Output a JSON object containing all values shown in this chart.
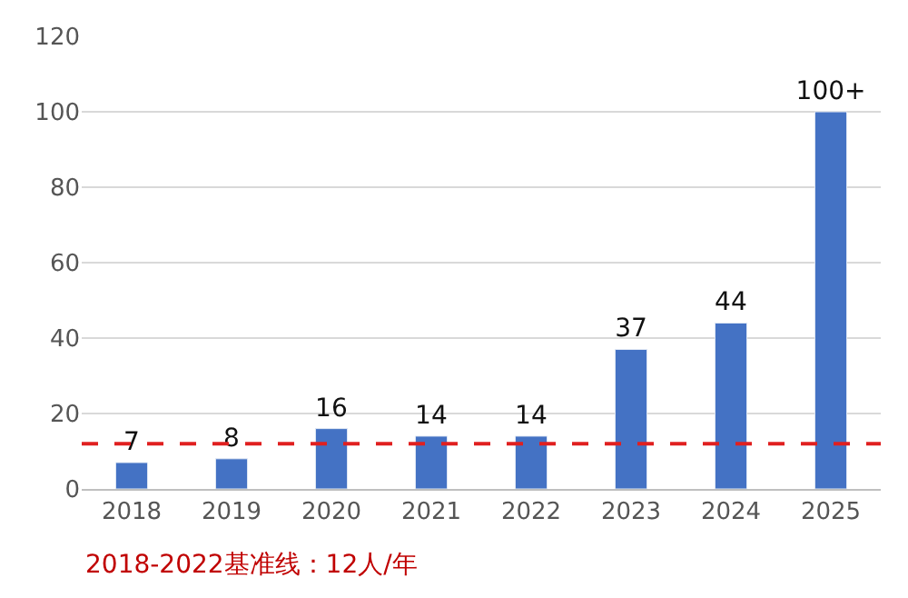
{
  "chart_data": {
    "type": "bar",
    "categories": [
      "2018",
      "2019",
      "2020",
      "2021",
      "2022",
      "2023",
      "2024",
      "2025"
    ],
    "values": [
      7,
      8,
      16,
      14,
      14,
      37,
      44,
      100
    ],
    "value_labels": [
      "7",
      "8",
      "16",
      "14",
      "14",
      "37",
      "44",
      "100+"
    ],
    "color": "#4472c4",
    "ylim": [
      0,
      120
    ],
    "yticks": [
      0,
      20,
      40,
      60,
      80,
      100,
      120
    ],
    "grid": "y",
    "ref_lines": [
      {
        "axis": "y",
        "value": 12,
        "color": "#e02020",
        "line_style": "dashed"
      }
    ],
    "annotations": [
      "2018-2022基准线：12人/年"
    ]
  }
}
